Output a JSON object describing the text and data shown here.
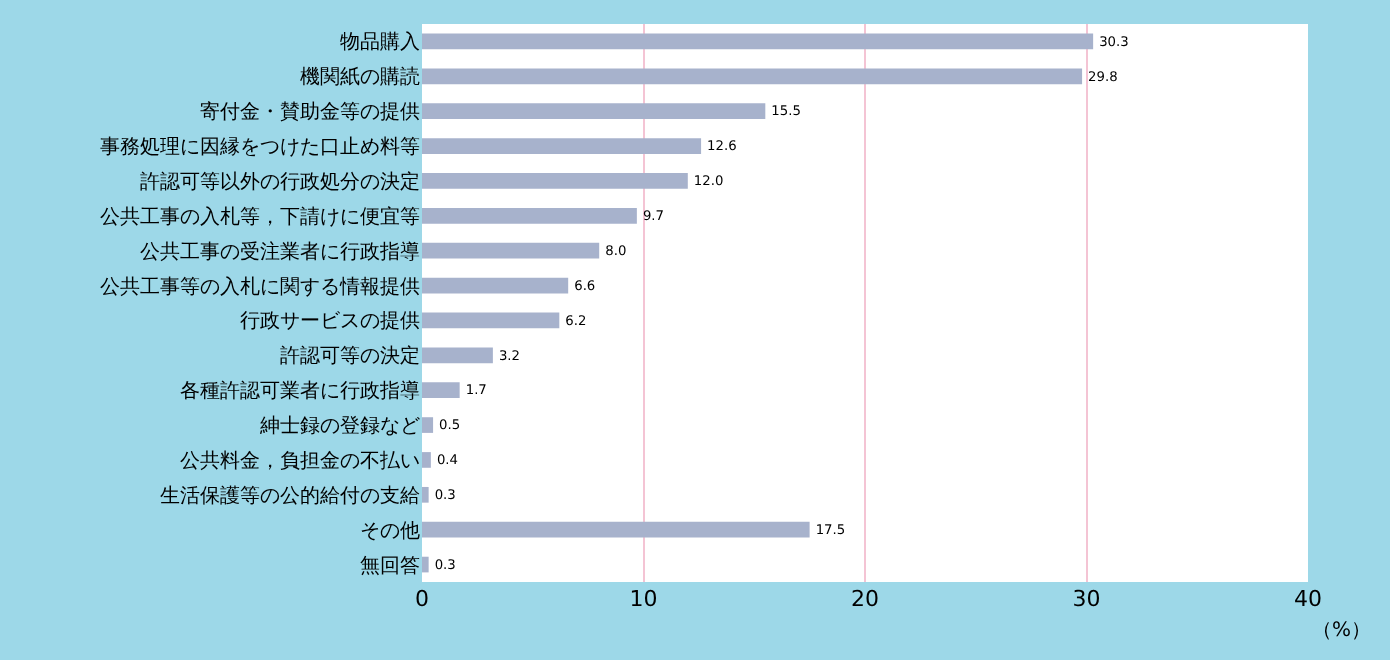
{
  "chart_data": {
    "type": "bar",
    "orientation": "horizontal",
    "xlabel": "（%）",
    "categories": [
      "物品購入",
      "機関紙の購読",
      "寄付金・賛助金等の提供",
      "事務処理に因縁をつけた口止め料等",
      "許認可等以外の行政処分の決定",
      "公共工事の入札等，下請けに便宜等",
      "公共工事の受注業者に行政指導",
      "公共工事等の入札に関する情報提供",
      "行政サービスの提供",
      "許認可等の決定",
      "各種許認可業者に行政指導",
      "紳士録の登録など",
      "公共料金，負担金の不払い",
      "生活保護等の公的給付の支給",
      "その他",
      "無回答"
    ],
    "values": [
      30.3,
      29.8,
      15.5,
      12.6,
      12.0,
      9.7,
      8.0,
      6.6,
      6.2,
      3.2,
      1.7,
      0.5,
      0.4,
      0.3,
      17.5,
      0.3
    ],
    "value_labels": [
      "30.3",
      "29.8",
      "15.5",
      "12.6",
      "12.0",
      "9.7",
      "8.0",
      "6.6",
      "6.2",
      "3.2",
      "1.7",
      "0.5",
      "0.4",
      "0.3",
      "17.5",
      "0.3"
    ],
    "color": "#a7b2cc",
    "xlim": [
      0,
      40
    ],
    "xticks": [
      0,
      10,
      20,
      30,
      40
    ],
    "grid": "x",
    "legend": false
  }
}
